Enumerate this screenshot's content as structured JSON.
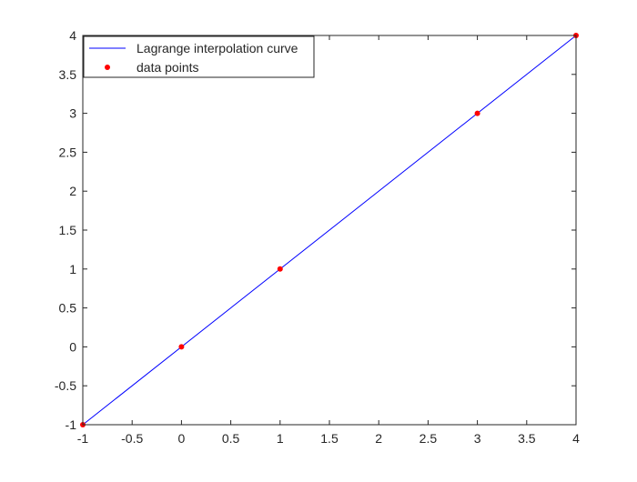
{
  "chart_data": {
    "type": "line",
    "title": "",
    "xlabel": "",
    "ylabel": "",
    "xlim": [
      -1,
      4
    ],
    "ylim": [
      -1,
      4
    ],
    "x_ticks": [
      "-1",
      "-0.5",
      "0",
      "0.5",
      "1",
      "1.5",
      "2",
      "2.5",
      "3",
      "3.5",
      "4"
    ],
    "y_ticks": [
      "-1",
      "-0.5",
      "0",
      "0.5",
      "1",
      "1.5",
      "2",
      "2.5",
      "3",
      "3.5",
      "4"
    ],
    "grid": false,
    "legend_position": "top-left",
    "series": [
      {
        "name": "Lagrange interpolation curve",
        "style": "line",
        "color": "#0000ff",
        "x": [
          -1,
          4
        ],
        "y": [
          -1,
          4
        ]
      },
      {
        "name": "data points",
        "style": "markers",
        "color": "#ff0000",
        "x": [
          -1,
          0,
          1,
          3,
          4
        ],
        "y": [
          -1,
          0,
          1,
          3,
          4
        ]
      }
    ]
  }
}
